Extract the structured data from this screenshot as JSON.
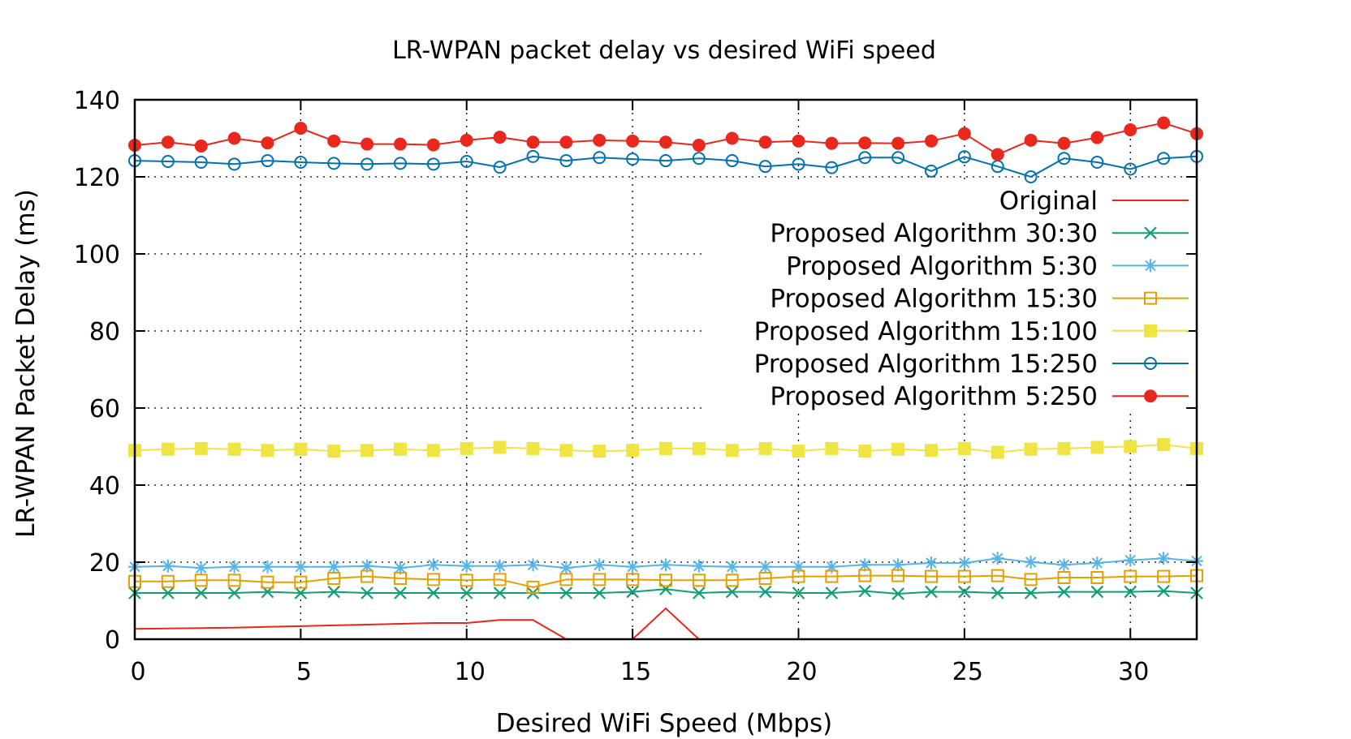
{
  "chart_data": {
    "type": "line",
    "title": "LR-WPAN packet delay vs desired WiFi speed",
    "xlabel": "Desired WiFi Speed (Mbps)",
    "ylabel": "LR-WPAN Packet Delay (ms)",
    "xlim": [
      0,
      32
    ],
    "ylim": [
      0,
      140
    ],
    "xticks": [
      0,
      5,
      10,
      15,
      20,
      25,
      30
    ],
    "yticks": [
      0,
      20,
      40,
      60,
      80,
      100,
      120,
      140
    ],
    "grid": true,
    "legend_position": "top-right",
    "x": [
      0,
      1,
      2,
      3,
      4,
      5,
      6,
      7,
      8,
      9,
      10,
      11,
      12,
      13,
      14,
      15,
      16,
      17,
      18,
      19,
      20,
      21,
      22,
      23,
      24,
      25,
      26,
      27,
      28,
      29,
      30,
      31,
      32
    ],
    "series": [
      {
        "name": "Original",
        "color": "#e8271d",
        "marker": "none",
        "values": [
          2.7,
          2.8,
          2.9,
          3.0,
          3.2,
          3.4,
          3.6,
          3.8,
          4.0,
          4.2,
          4.2,
          5.0,
          5.0,
          0,
          0,
          0,
          8.0,
          0,
          0,
          0,
          0,
          0,
          0,
          0,
          0,
          0,
          0,
          0,
          0,
          0,
          0,
          0,
          0
        ]
      },
      {
        "name": "Proposed Algorithm 30:30",
        "color": "#109e74",
        "marker": "x",
        "values": [
          12.0,
          12.0,
          12.0,
          12.0,
          12.3,
          12.0,
          12.3,
          12.0,
          12.0,
          12.0,
          12.0,
          12.0,
          12.0,
          12.0,
          12.0,
          12.3,
          13.0,
          12.0,
          12.3,
          12.3,
          12.0,
          12.0,
          12.5,
          11.8,
          12.3,
          12.3,
          12.0,
          12.0,
          12.3,
          12.3,
          12.3,
          12.5,
          12.0
        ]
      },
      {
        "name": "Proposed Algorithm 5:30",
        "color": "#56b4e9",
        "marker": "asterisk",
        "values": [
          18.8,
          19.0,
          18.5,
          18.8,
          18.8,
          18.8,
          18.8,
          19.0,
          18.5,
          19.3,
          19.0,
          19.0,
          19.3,
          18.5,
          19.3,
          18.8,
          19.3,
          19.0,
          18.8,
          18.8,
          18.8,
          18.8,
          19.3,
          19.3,
          19.8,
          19.8,
          21.0,
          20.0,
          19.3,
          19.8,
          20.5,
          21.0,
          20.3
        ]
      },
      {
        "name": "Proposed Algorithm 15:30",
        "color": "#e69f00",
        "marker": "open-square",
        "values": [
          15.0,
          15.0,
          15.3,
          15.3,
          14.8,
          14.8,
          15.8,
          16.3,
          15.8,
          15.5,
          15.3,
          15.5,
          13.5,
          15.5,
          15.5,
          15.5,
          15.3,
          15.3,
          15.3,
          15.8,
          16.3,
          16.3,
          16.5,
          16.5,
          16.3,
          16.3,
          16.5,
          15.5,
          16.0,
          16.0,
          16.3,
          16.3,
          16.5
        ]
      },
      {
        "name": "Proposed Algorithm 15:100",
        "color": "#f0e442",
        "marker": "filled-square",
        "values": [
          49.0,
          49.3,
          49.5,
          49.3,
          49.0,
          49.3,
          48.8,
          49.0,
          49.3,
          49.0,
          49.5,
          49.8,
          49.5,
          49.0,
          48.8,
          49.0,
          49.5,
          49.5,
          49.0,
          49.5,
          48.8,
          49.5,
          48.8,
          49.3,
          49.0,
          49.5,
          48.5,
          49.3,
          49.5,
          49.8,
          50.0,
          50.5,
          49.5
        ]
      },
      {
        "name": "Proposed Algorithm 15:250",
        "color": "#0072b2",
        "marker": "open-circle",
        "values": [
          124.2,
          124.0,
          123.8,
          123.3,
          124.2,
          123.8,
          123.5,
          123.3,
          123.5,
          123.3,
          124.0,
          122.5,
          125.3,
          124.2,
          125.0,
          124.6,
          124.2,
          124.8,
          124.2,
          122.7,
          123.3,
          122.4,
          125.0,
          125.0,
          121.5,
          125.2,
          122.7,
          120.0,
          124.8,
          123.8,
          122.0,
          124.8,
          125.3
        ]
      },
      {
        "name": "Proposed Algorithm 5:250",
        "color": "#e8271d",
        "marker": "filled-circle",
        "values": [
          128.2,
          129.0,
          128.0,
          130.0,
          128.8,
          132.6,
          129.3,
          128.5,
          128.5,
          128.3,
          129.5,
          130.3,
          129.0,
          129.0,
          129.5,
          129.3,
          129.0,
          128.2,
          130.0,
          129.0,
          129.3,
          128.7,
          128.8,
          128.7,
          129.3,
          131.2,
          125.8,
          129.5,
          128.7,
          130.2,
          132.2,
          134.0,
          131.2
        ]
      }
    ]
  }
}
